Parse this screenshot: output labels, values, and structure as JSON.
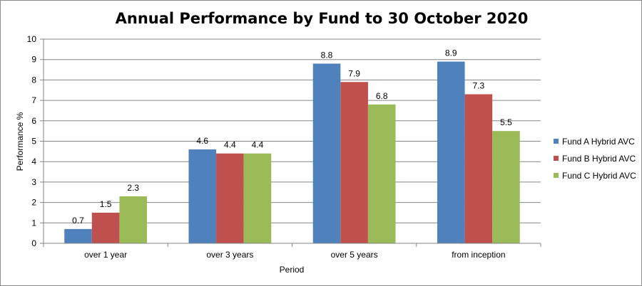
{
  "chart_data": {
    "type": "bar",
    "title": "Annual Performance by Fund to 30 October 2020",
    "xlabel": "Period",
    "ylabel": "Performance %",
    "categories": [
      "over 1 year",
      "over 3 years",
      "over 5 years",
      "from inception"
    ],
    "series": [
      {
        "name": "Fund A Hybrid AVC",
        "color": "#4F81BD",
        "values": [
          0.7,
          4.6,
          8.8,
          8.9
        ]
      },
      {
        "name": "Fund B Hybrid AVC",
        "color": "#C0504D",
        "values": [
          1.5,
          4.4,
          7.9,
          7.3
        ]
      },
      {
        "name": "Fund C Hybrid AVC",
        "color": "#9BBB59",
        "values": [
          2.3,
          4.4,
          6.8,
          5.5
        ]
      }
    ],
    "ylim": [
      0,
      10
    ],
    "yticks": [
      0,
      1,
      2,
      3,
      4,
      5,
      6,
      7,
      8,
      9,
      10
    ],
    "grid": true,
    "legend_position": "right",
    "data_labels": true
  }
}
